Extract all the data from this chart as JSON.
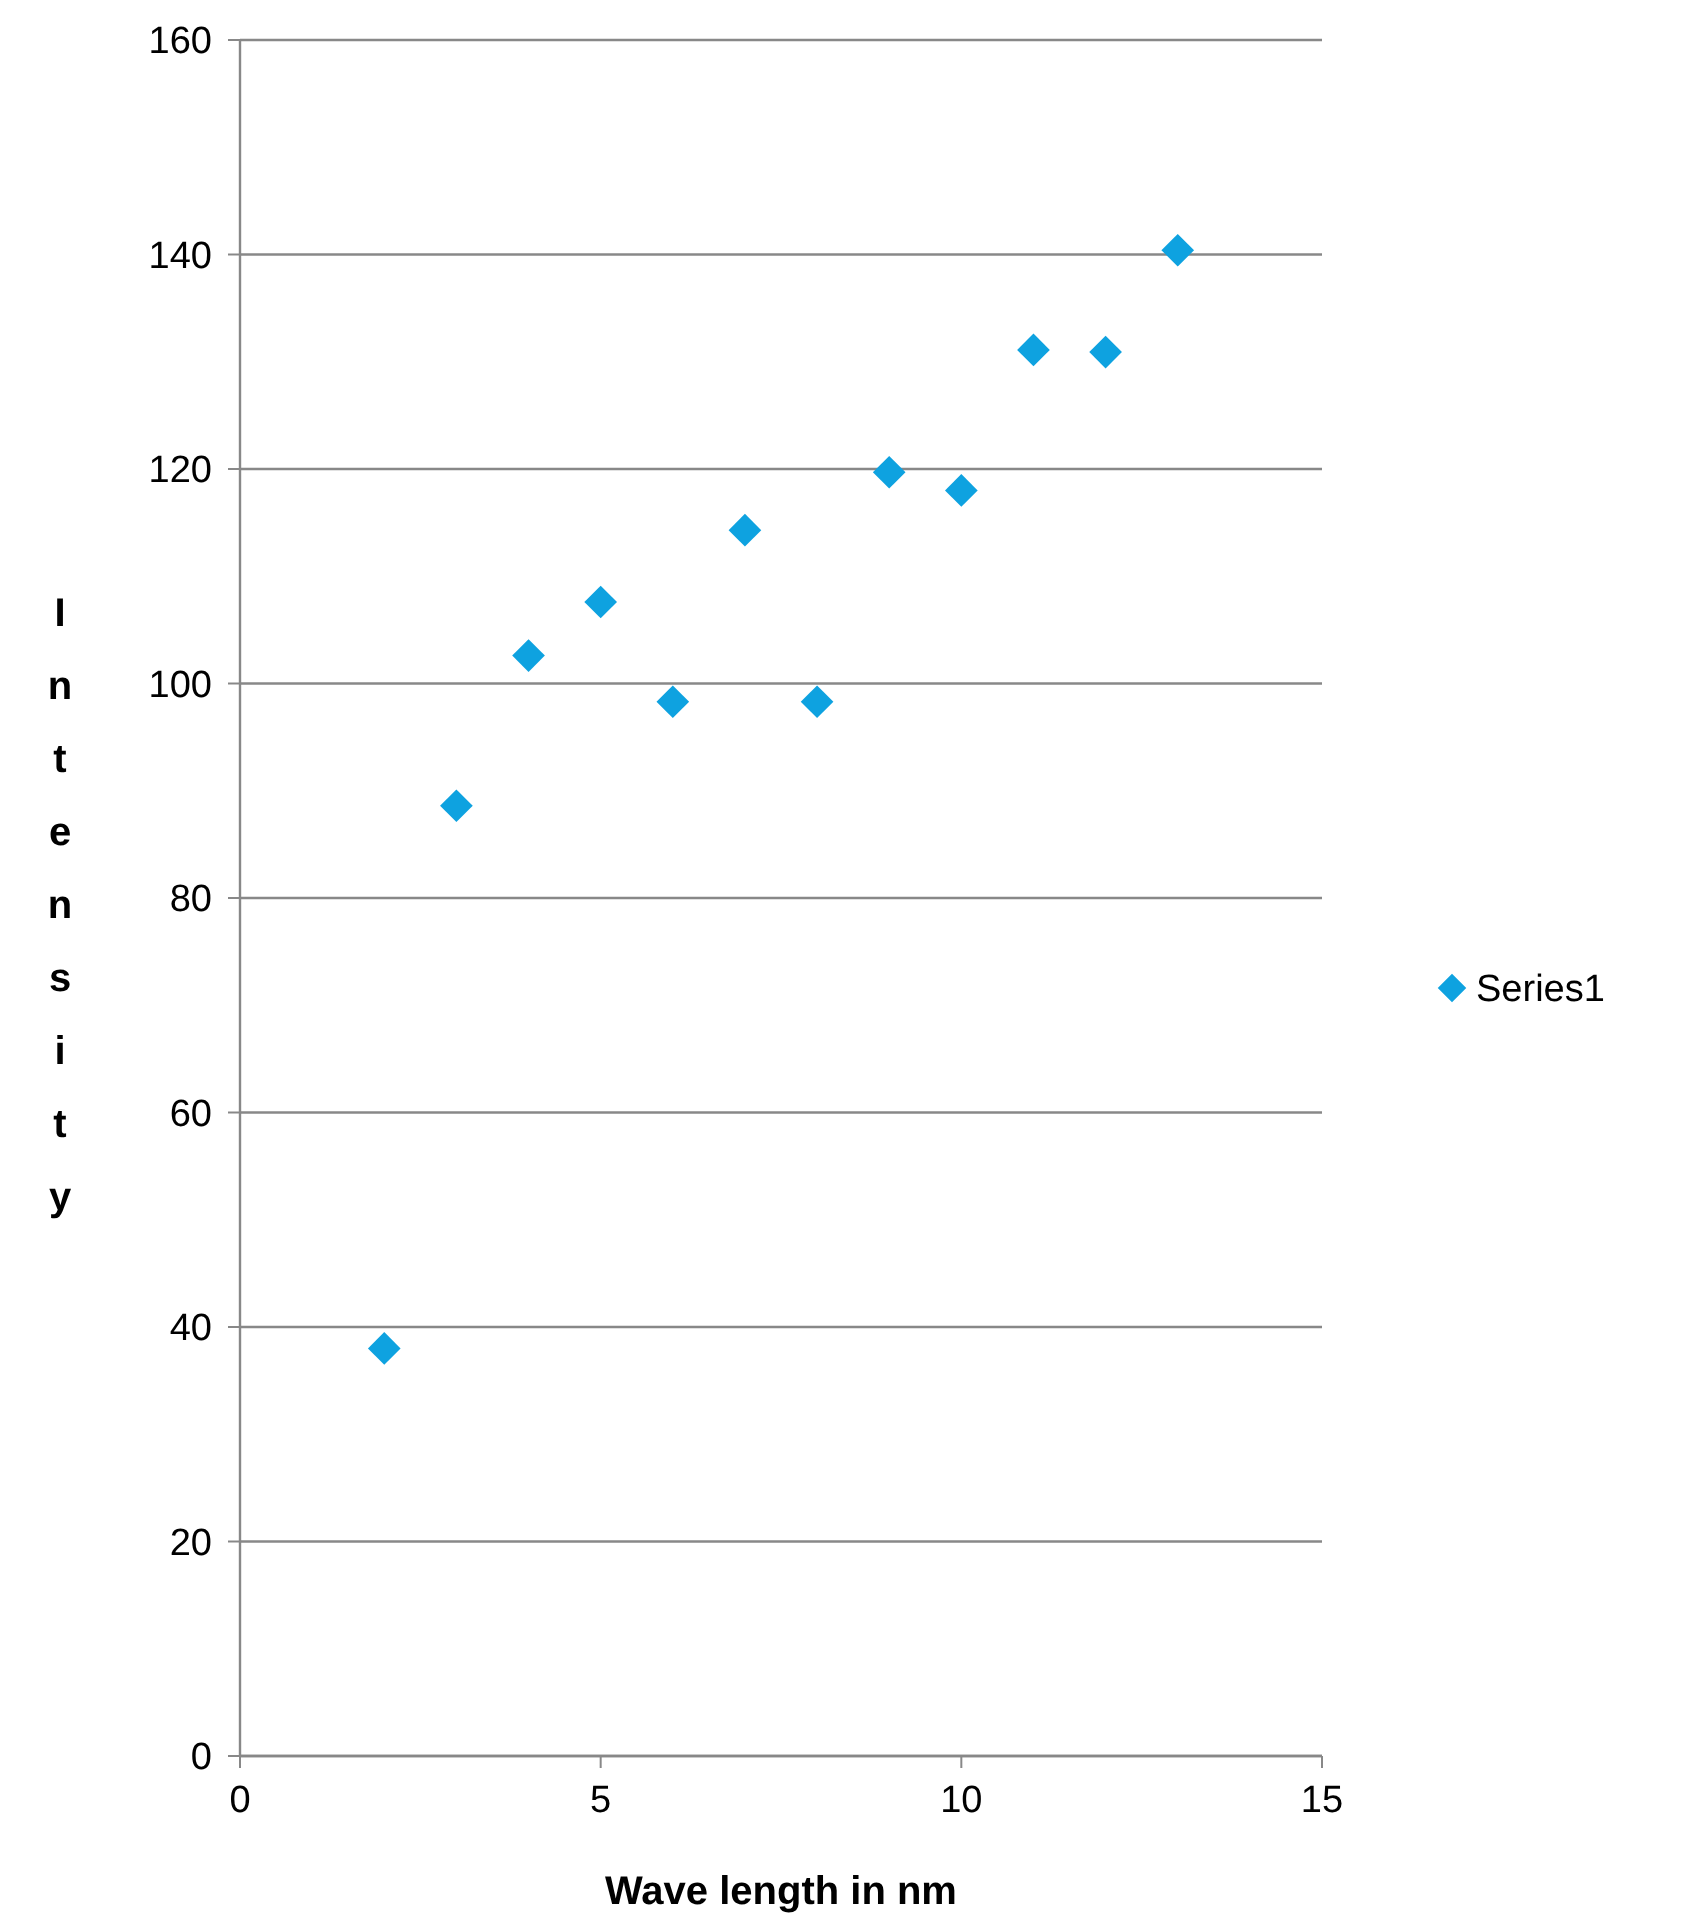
{
  "chart_data": {
    "type": "scatter",
    "xlabel": "Wave length in nm",
    "ylabel": "Intensity",
    "x": [
      2,
      3,
      4,
      5,
      6,
      7,
      8,
      9,
      10,
      11,
      12,
      13
    ],
    "series": [
      {
        "name": "Series1",
        "color": "#0ea2e0",
        "values": [
          38,
          88.6,
          102.6,
          107.6,
          98.3,
          114.3,
          98.3,
          119.7,
          118,
          131.1,
          130.9,
          140.4
        ]
      }
    ],
    "xlim": [
      0,
      15
    ],
    "xticks": [
      0,
      5,
      10,
      15
    ],
    "ylim": [
      0,
      160
    ],
    "yticks": [
      0,
      20,
      40,
      60,
      80,
      100,
      120,
      140,
      160
    ],
    "grid": "y",
    "legend": "right",
    "marker": "diamond"
  }
}
